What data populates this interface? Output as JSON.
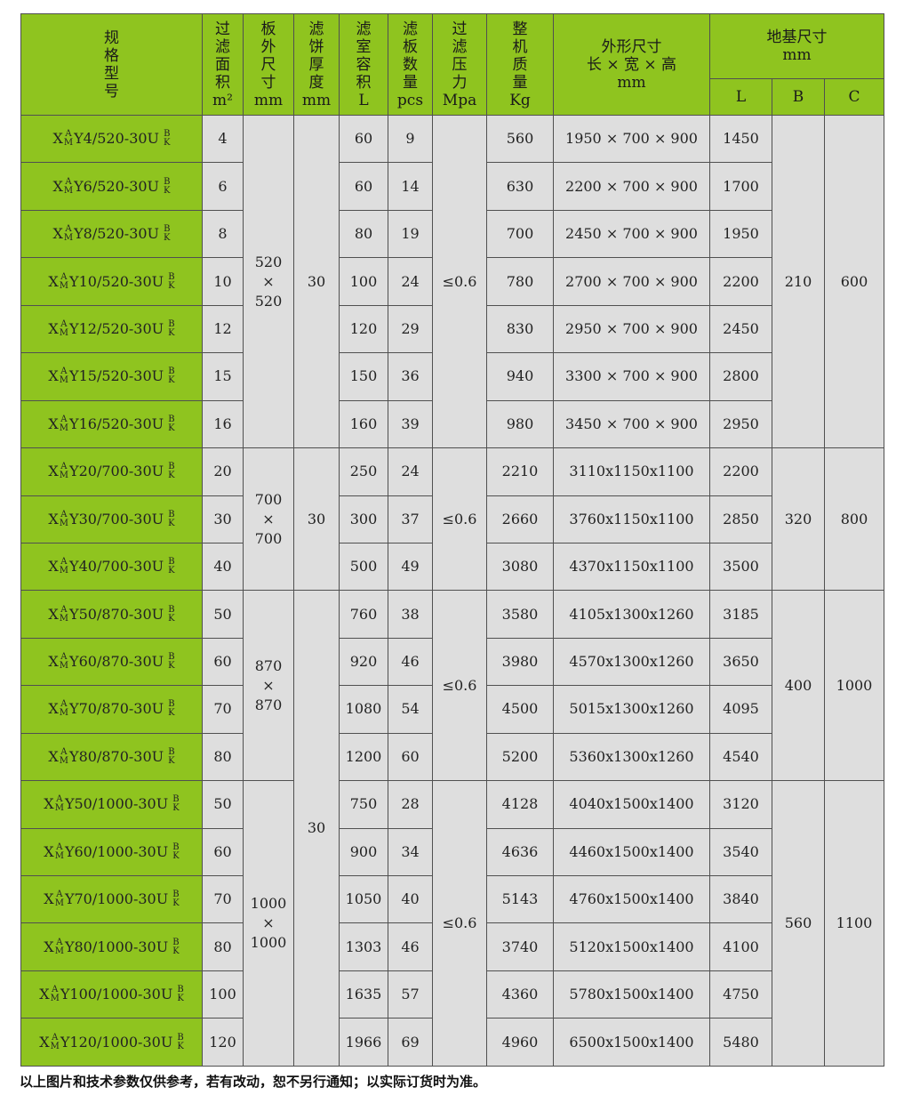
{
  "colors": {
    "header_green": "#8fc41f",
    "cell_grey": "#dedede",
    "border": "#505050"
  },
  "headers": {
    "model": "规\n格\n型\n号",
    "area": "过\n滤\n面\n积\nm²",
    "board_size": "板\n外\n尺\n寸\nmm",
    "cake_thickness": "滤\n饼\n厚\n度\nmm",
    "chamber_volume": "滤\n室\n容\n积\nL",
    "plate_count": "滤\n板\n数\n量\npcs",
    "pressure": "过\n滤\n压\n力\nMpa",
    "weight": "整\n机\n质\n量\nKg",
    "dimensions": "外形尺寸\n长 × 宽 × 高\nmm",
    "foundation": "地基尺寸\nmm",
    "foundation_L": "L",
    "foundation_B": "B",
    "foundation_C": "C"
  },
  "model_parts": {
    "prefix": "X",
    "sup": "A",
    "sub": "M",
    "suffix_top": "B",
    "suffix_bottom": "K"
  },
  "rows": [
    {
      "model": "Y4/520-30U",
      "area": "4",
      "volume": "60",
      "plates": "9",
      "weight": "560",
      "dims": "1950 × 700 × 900",
      "L": "1450"
    },
    {
      "model": "Y6/520-30U",
      "area": "6",
      "volume": "60",
      "plates": "14",
      "weight": "630",
      "dims": "2200 × 700 × 900",
      "L": "1700"
    },
    {
      "model": "Y8/520-30U",
      "area": "8",
      "volume": "80",
      "plates": "19",
      "weight": "700",
      "dims": "2450 × 700 × 900",
      "L": "1950"
    },
    {
      "model": "Y10/520-30U",
      "area": "10",
      "volume": "100",
      "plates": "24",
      "weight": "780",
      "dims": "2700 × 700 × 900",
      "L": "2200"
    },
    {
      "model": "Y12/520-30U",
      "area": "12",
      "volume": "120",
      "plates": "29",
      "weight": "830",
      "dims": "2950 × 700 × 900",
      "L": "2450"
    },
    {
      "model": "Y15/520-30U",
      "area": "15",
      "volume": "150",
      "plates": "36",
      "weight": "940",
      "dims": "3300 × 700 × 900",
      "L": "2800"
    },
    {
      "model": "Y16/520-30U",
      "area": "16",
      "volume": "160",
      "plates": "39",
      "weight": "980",
      "dims": "3450 × 700 × 900",
      "L": "2950"
    },
    {
      "model": "Y20/700-30U",
      "area": "20",
      "volume": "250",
      "plates": "24",
      "weight": "2210",
      "dims": "3110x1150x1100",
      "L": "2200"
    },
    {
      "model": "Y30/700-30U",
      "area": "30",
      "volume": "300",
      "plates": "37",
      "weight": "2660",
      "dims": "3760x1150x1100",
      "L": "2850"
    },
    {
      "model": "Y40/700-30U",
      "area": "40",
      "volume": "500",
      "plates": "49",
      "weight": "3080",
      "dims": "4370x1150x1100",
      "L": "3500"
    },
    {
      "model": "Y50/870-30U",
      "area": "50",
      "volume": "760",
      "plates": "38",
      "weight": "3580",
      "dims": "4105x1300x1260",
      "L": "3185"
    },
    {
      "model": "Y60/870-30U",
      "area": "60",
      "volume": "920",
      "plates": "46",
      "weight": "3980",
      "dims": "4570x1300x1260",
      "L": "3650"
    },
    {
      "model": "Y70/870-30U",
      "area": "70",
      "volume": "1080",
      "plates": "54",
      "weight": "4500",
      "dims": "5015x1300x1260",
      "L": "4095"
    },
    {
      "model": "Y80/870-30U",
      "area": "80",
      "volume": "1200",
      "plates": "60",
      "weight": "5200",
      "dims": "5360x1300x1260",
      "L": "4540"
    },
    {
      "model": "Y50/1000-30U",
      "area": "50",
      "volume": "750",
      "plates": "28",
      "weight": "4128",
      "dims": "4040x1500x1400",
      "L": "3120"
    },
    {
      "model": "Y60/1000-30U",
      "area": "60",
      "volume": "900",
      "plates": "34",
      "weight": "4636",
      "dims": "4460x1500x1400",
      "L": "3540"
    },
    {
      "model": "Y70/1000-30U",
      "area": "70",
      "volume": "1050",
      "plates": "40",
      "weight": "5143",
      "dims": "4760x1500x1400",
      "L": "3840"
    },
    {
      "model": "Y80/1000-30U",
      "area": "80",
      "volume": "1303",
      "plates": "46",
      "weight": "3740",
      "dims": "5120x1500x1400",
      "L": "4100"
    },
    {
      "model": "Y100/1000-30U",
      "area": "100",
      "volume": "1635",
      "plates": "57",
      "weight": "4360",
      "dims": "5780x1500x1400",
      "L": "4750"
    },
    {
      "model": "Y120/1000-30U",
      "area": "120",
      "volume": "1966",
      "plates": "69",
      "weight": "4960",
      "dims": "6500x1500x1400",
      "L": "5480"
    }
  ],
  "merged": {
    "board_size": [
      {
        "value": "520\n×\n520",
        "rows": 7
      },
      {
        "value": "700\n×\n700",
        "rows": 3
      },
      {
        "value": "870\n×\n870",
        "rows": 4
      },
      {
        "value": "1000\n×\n1000",
        "rows": 6
      }
    ],
    "cake_thickness": [
      {
        "value": "30",
        "rows": 7
      },
      {
        "value": "30",
        "rows": 3
      },
      {
        "value": "30",
        "rows": 10
      }
    ],
    "pressure": [
      {
        "value": "≤0.6",
        "rows": 7
      },
      {
        "value": "≤0.6",
        "rows": 3
      },
      {
        "value": "≤0.6",
        "rows": 4
      },
      {
        "value": "≤0.6",
        "rows": 6
      }
    ],
    "B": [
      {
        "value": "210",
        "rows": 7
      },
      {
        "value": "320",
        "rows": 3
      },
      {
        "value": "400",
        "rows": 4
      },
      {
        "value": "560",
        "rows": 6
      }
    ],
    "C": [
      {
        "value": "600",
        "rows": 7
      },
      {
        "value": "800",
        "rows": 3
      },
      {
        "value": "1000",
        "rows": 4
      },
      {
        "value": "1100",
        "rows": 6
      }
    ]
  },
  "footer": "以上图片和技术参数仅供参考，若有改动，恕不另行通知；以实际订货时为准。"
}
